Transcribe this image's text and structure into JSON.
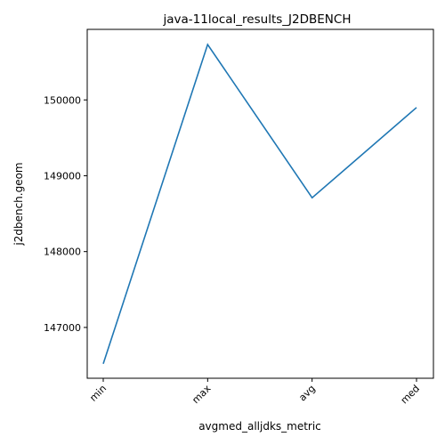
{
  "chart_data": {
    "type": "line",
    "title": "java-11local_results_J2DBENCH",
    "xlabel": "avgmed_alljdks_metric",
    "ylabel": "j2dbench.geom",
    "categories": [
      "min",
      "max",
      "avg",
      "med"
    ],
    "series": [
      {
        "values": [
          146520,
          150730,
          148710,
          149900
        ],
        "color": "#1f77b4"
      }
    ],
    "yticks": [
      147000,
      148000,
      149000,
      150000
    ],
    "ylim": [
      146330,
      150930
    ],
    "grid": false,
    "xtick_rotation": 45
  }
}
